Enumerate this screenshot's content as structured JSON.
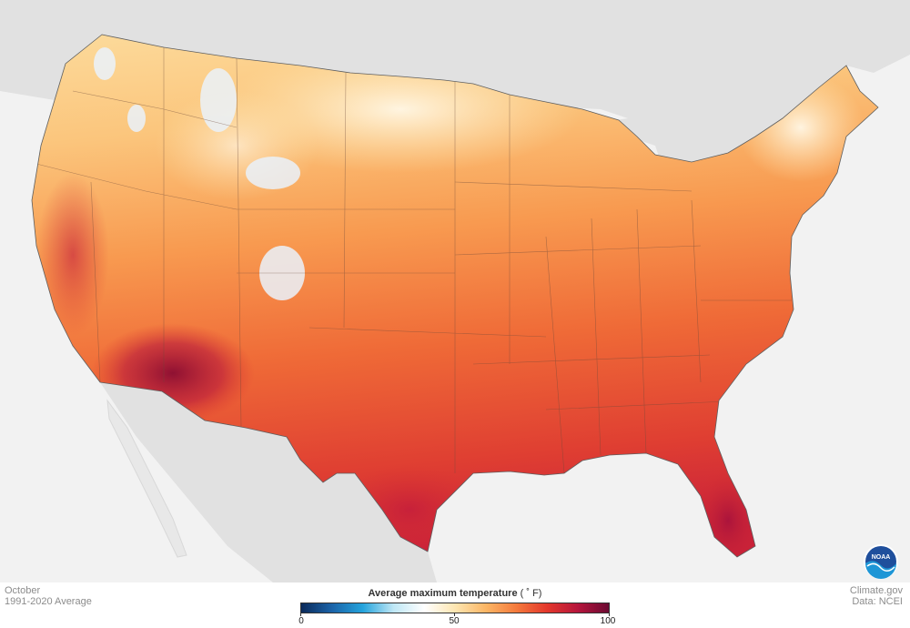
{
  "map": {
    "subject": "Average maximum temperature",
    "unit": "°F",
    "period": "October",
    "normals": "1991-2020 Average",
    "legend": {
      "title": "Average maximum temperature",
      "unit_label": "( ˚ F)",
      "min": 0,
      "mid": 50,
      "max": 100,
      "ticks": [
        "0",
        "50",
        "100"
      ],
      "colors": [
        "#0b2a5a",
        "#1b63a8",
        "#24a3dc",
        "#bfe7f5",
        "#ffffff",
        "#fde6b2",
        "#fbb665",
        "#f47a3c",
        "#e3372c",
        "#b5153c",
        "#6b0a32"
      ]
    }
  },
  "credits": {
    "source": "Climate.gov",
    "data": "Data: NCEI"
  },
  "logo": {
    "text": "NOAA",
    "icon": "noaa-logo-icon"
  }
}
